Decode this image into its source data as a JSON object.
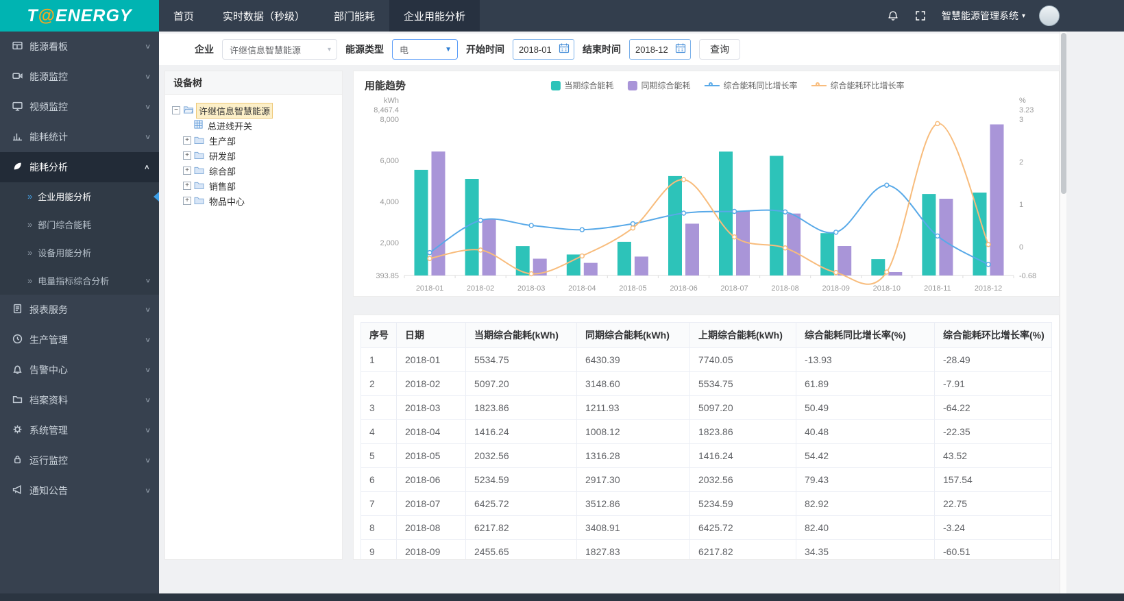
{
  "header": {
    "logo": {
      "part1": "T",
      "at": "@",
      "part2": "ENERGY"
    },
    "nav": [
      {
        "label": "首页"
      },
      {
        "label": "实时数据（秒级）"
      },
      {
        "label": "部门能耗"
      },
      {
        "label": "企业用能分析"
      }
    ],
    "system_name": "智慧能源管理系统"
  },
  "icons": {
    "caret_down": "▾",
    "caret_solid": "▼",
    "chevron": ">",
    "minus": "−",
    "plus": "+",
    "sub_marker": "»"
  },
  "sidebar": {
    "items": [
      {
        "label": "能源看板"
      },
      {
        "label": "能源监控"
      },
      {
        "label": "视频监控"
      },
      {
        "label": "能耗统计"
      },
      {
        "label": "能耗分析"
      },
      {
        "label": "报表服务"
      },
      {
        "label": "生产管理"
      },
      {
        "label": "告警中心"
      },
      {
        "label": "档案资料"
      },
      {
        "label": "系统管理"
      },
      {
        "label": "运行监控"
      },
      {
        "label": "通知公告"
      }
    ],
    "submenu": [
      {
        "label": "企业用能分析"
      },
      {
        "label": "部门综合能耗"
      },
      {
        "label": "设备用能分析"
      },
      {
        "label": "电量指标综合分析"
      }
    ]
  },
  "filters": {
    "company_label": "企业",
    "company_value": "许继信息智慧能源",
    "energy_type_label": "能源类型",
    "energy_type_value": "电",
    "start_label": "开始时间",
    "start_value": "2018-01",
    "end_label": "结束时间",
    "end_value": "2018-12",
    "query_button": "查询"
  },
  "tree": {
    "title": "设备树",
    "root": "许继信息智慧能源",
    "nodes": [
      "总进线开关",
      "生产部",
      "研发部",
      "综合部",
      "销售部",
      "物品中心"
    ]
  },
  "chart_data": {
    "type": "bar",
    "title": "用能趋势",
    "categories": [
      "2018-01",
      "2018-02",
      "2018-03",
      "2018-04",
      "2018-05",
      "2018-06",
      "2018-07",
      "2018-08",
      "2018-09",
      "2018-10",
      "2018-11",
      "2018-12"
    ],
    "series": [
      {
        "name": "当期综合能耗",
        "type": "bar",
        "axis": "left",
        "color": "#2dc3b9",
        "values": [
          5534.75,
          5097.2,
          1823.86,
          1416.24,
          2032.56,
          5234.59,
          6425.72,
          6217.82,
          2455.65,
          1190,
          4360,
          4430
        ]
      },
      {
        "name": "同期综合能耗",
        "type": "bar",
        "axis": "left",
        "color": "#a995d8",
        "values": [
          6430.39,
          3148.6,
          1211.93,
          1008.12,
          1316.28,
          2917.3,
          3512.86,
          3408.91,
          1827.83,
          560,
          4130,
          7750
        ]
      },
      {
        "name": "综合能耗同比增长率",
        "type": "line",
        "axis": "right",
        "color": "#58a9e8",
        "values": [
          -0.14,
          0.62,
          0.5,
          0.4,
          0.54,
          0.79,
          0.83,
          0.82,
          0.34,
          1.45,
          0.25,
          -0.42
        ]
      },
      {
        "name": "综合能耗环比增长率",
        "type": "line",
        "axis": "right",
        "color": "#f8bc7c",
        "values": [
          -0.28,
          -0.08,
          -0.64,
          -0.22,
          0.44,
          1.58,
          0.23,
          -0.03,
          -0.61,
          -0.6,
          2.9,
          0.05
        ]
      }
    ],
    "left_axis": {
      "label": "kWh",
      "min": 393.85,
      "max": 8467.4,
      "ticks": [
        393.85,
        2000,
        4000,
        6000,
        8000,
        8467.4
      ],
      "tick_labels": [
        "393.85",
        "2,000",
        "4,000",
        "6,000",
        "8,000",
        "8,467.4"
      ]
    },
    "right_axis": {
      "label": "%",
      "min": -0.68,
      "max": 3.23,
      "ticks": [
        -0.68,
        0,
        1,
        2,
        3,
        3.23
      ],
      "tick_labels": [
        "-0.68",
        "0",
        "1",
        "2",
        "3",
        "3.23"
      ]
    },
    "grid": false,
    "legend_position": "top-center"
  },
  "table": {
    "headers": [
      "序号",
      "日期",
      "当期综合能耗(kWh)",
      "同期综合能耗(kWh)",
      "上期综合能耗(kWh)",
      "综合能耗同比增长率(%)",
      "综合能耗环比增长率(%)"
    ],
    "rows": [
      {
        "no": "1",
        "date": "2018-01",
        "current": "5534.75",
        "same": "6430.39",
        "prev": "7740.05",
        "yoy": "-13.93",
        "mom": "-28.49"
      },
      {
        "no": "2",
        "date": "2018-02",
        "current": "5097.20",
        "same": "3148.60",
        "prev": "5534.75",
        "yoy": "61.89",
        "mom": "-7.91"
      },
      {
        "no": "3",
        "date": "2018-03",
        "current": "1823.86",
        "same": "1211.93",
        "prev": "5097.20",
        "yoy": "50.49",
        "mom": "-64.22"
      },
      {
        "no": "4",
        "date": "2018-04",
        "current": "1416.24",
        "same": "1008.12",
        "prev": "1823.86",
        "yoy": "40.48",
        "mom": "-22.35"
      },
      {
        "no": "5",
        "date": "2018-05",
        "current": "2032.56",
        "same": "1316.28",
        "prev": "1416.24",
        "yoy": "54.42",
        "mom": "43.52"
      },
      {
        "no": "6",
        "date": "2018-06",
        "current": "5234.59",
        "same": "2917.30",
        "prev": "2032.56",
        "yoy": "79.43",
        "mom": "157.54"
      },
      {
        "no": "7",
        "date": "2018-07",
        "current": "6425.72",
        "same": "3512.86",
        "prev": "5234.59",
        "yoy": "82.92",
        "mom": "22.75"
      },
      {
        "no": "8",
        "date": "2018-08",
        "current": "6217.82",
        "same": "3408.91",
        "prev": "6425.72",
        "yoy": "82.40",
        "mom": "-3.24"
      },
      {
        "no": "9",
        "date": "2018-09",
        "current": "2455.65",
        "same": "1827.83",
        "prev": "6217.82",
        "yoy": "34.35",
        "mom": "-60.51"
      }
    ]
  }
}
